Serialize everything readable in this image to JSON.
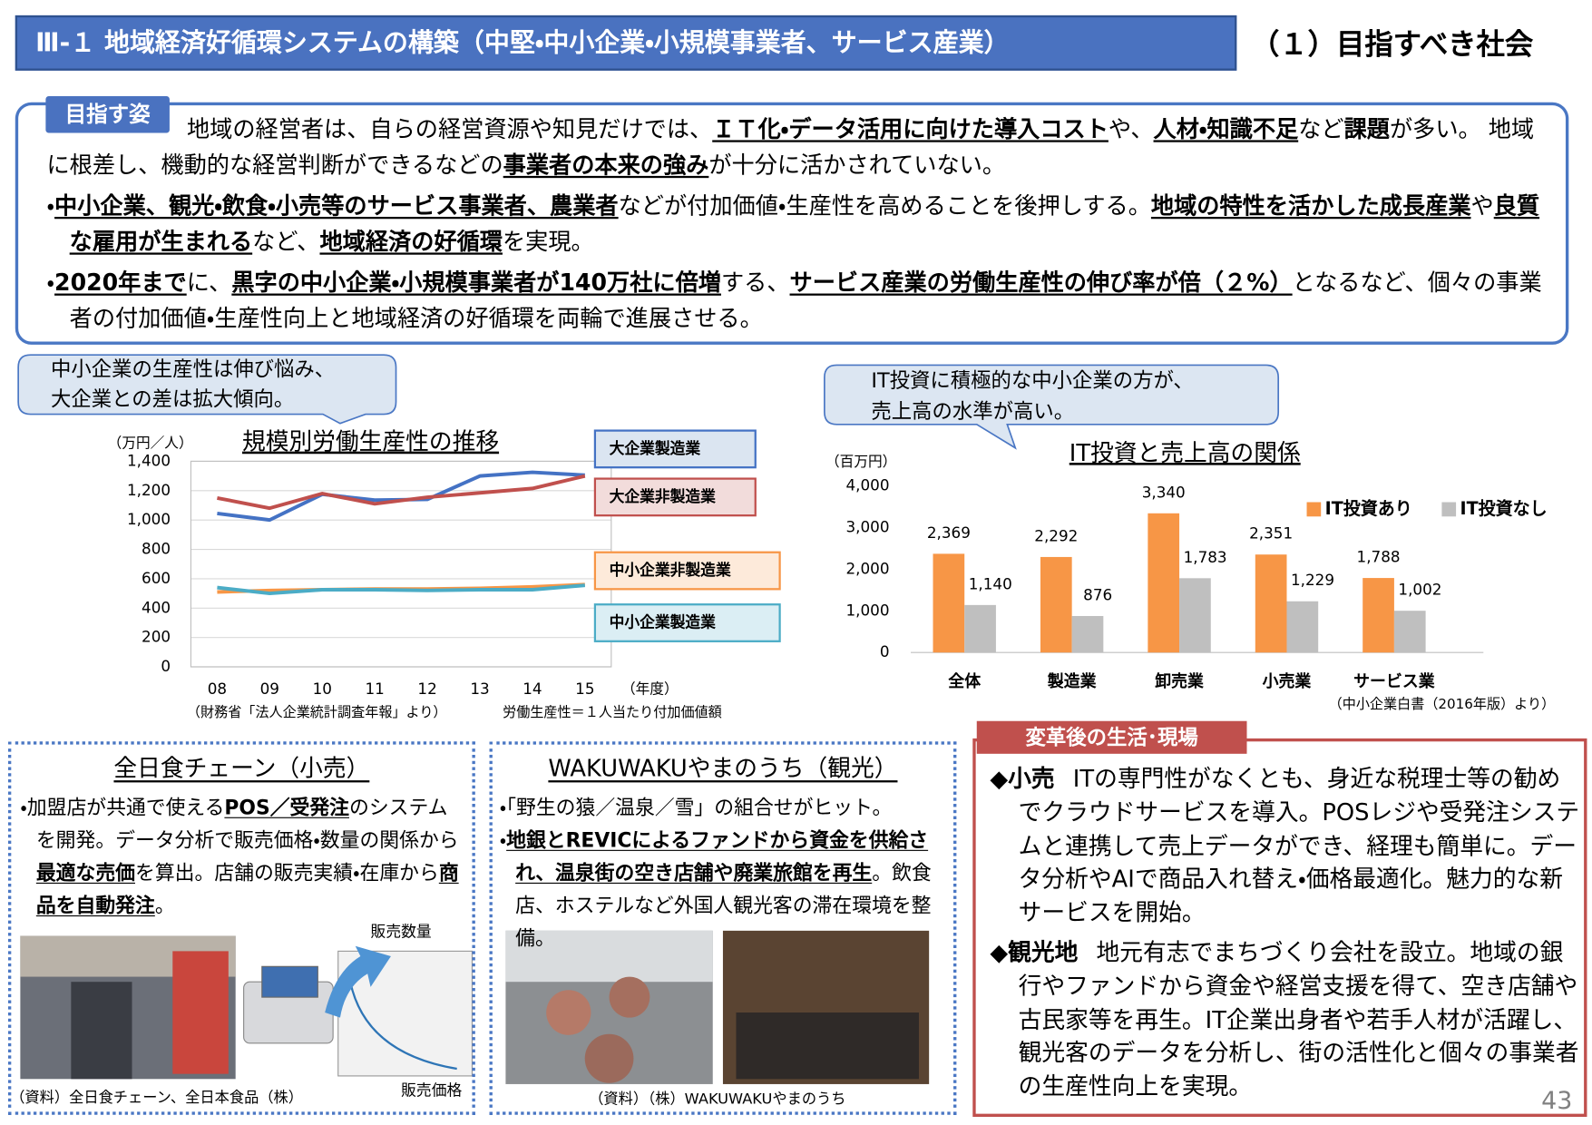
{
  "header": {
    "title": "Ⅲ-１ 地域経済好循環システムの構築（中堅・中小企業・小規模事業者、サービス産業）",
    "subtitle": "（１）目指すべき社会"
  },
  "vision": {
    "label": "目指す姿",
    "paragraphs": [
      {
        "runs": [
          {
            "text": "地域の経営者は、自らの経営資源や知見だけでは、"
          },
          {
            "text": "ＩＴ化・データ活用に向けた導入コスト",
            "style": "bold-underline"
          },
          {
            "text": "や、"
          },
          {
            "text": "人材・知識不足",
            "style": "bold-underline"
          },
          {
            "text": "など"
          },
          {
            "text": "課題",
            "style": "bold"
          },
          {
            "text": "が多い。 地域に根差し、機動的な経営判断ができるなどの"
          },
          {
            "text": "事業者の本来の強み",
            "style": "bold-underline"
          },
          {
            "text": "が十分に活かされていない。"
          }
        ]
      },
      {
        "runs": [
          {
            "text": "・"
          },
          {
            "text": "中小企業、観光・飲食・小売等のサービス事業者、農業者",
            "style": "bold-underline"
          },
          {
            "text": "などが付加価値・生産性を高めることを後押しする。"
          },
          {
            "text": "地域の特性を活かした成長産業",
            "style": "bold-underline"
          },
          {
            "text": "や"
          },
          {
            "text": "良質な雇用が生まれる",
            "style": "bold-underline"
          },
          {
            "text": "など、"
          },
          {
            "text": "地域経済の好循環",
            "style": "bold-underline"
          },
          {
            "text": "を実現。"
          }
        ]
      },
      {
        "runs": [
          {
            "text": "・"
          },
          {
            "text": "2020年まで",
            "style": "bold-underline"
          },
          {
            "text": "に、"
          },
          {
            "text": "黒字の中小企業・小規模事業者が140万社に倍増",
            "style": "bold-underline"
          },
          {
            "text": "する、"
          },
          {
            "text": "サービス産業の労働生産性の伸び率が倍（２%）",
            "style": "bold-underline"
          },
          {
            "text": "となるなど、個々の事業者の付加価値・生産性向上と地域経済の好循環を両輪で進展させる。"
          }
        ]
      }
    ]
  },
  "chart_data": [
    {
      "type": "line",
      "title": "規模別労働生産性の推移",
      "annotation": [
        "中小企業の生産性は伸び悩み、",
        "大企業との差は拡大傾向。"
      ],
      "y_label": "（万円／人）",
      "x_label": "（年度）",
      "source": "（財務省「法人企業統計調査年報」より）",
      "note": "労働生産性＝１人当たり付加価値額",
      "categories": [
        "08",
        "09",
        "10",
        "11",
        "12",
        "13",
        "14",
        "15"
      ],
      "series": [
        {
          "name": "大企業製造業",
          "color": "#4472c4",
          "values": [
            1045,
            1000,
            1175,
            1135,
            1140,
            1300,
            1325,
            1305
          ]
        },
        {
          "name": "大企業非製造業",
          "color": "#c0504d",
          "values": [
            1150,
            1080,
            1180,
            1110,
            1155,
            1185,
            1215,
            1300
          ]
        },
        {
          "name": "中小企業非製造業",
          "color": "#f79646",
          "values": [
            510,
            520,
            525,
            530,
            530,
            535,
            545,
            560
          ]
        },
        {
          "name": "中小企業製造業",
          "color": "#4bacc6",
          "values": [
            540,
            500,
            525,
            525,
            520,
            525,
            525,
            555
          ]
        }
      ],
      "ylim": [
        0,
        1400
      ],
      "yticks": [
        0,
        200,
        400,
        600,
        800,
        {
          "value": 1000,
          "label": "1,000"
        },
        {
          "value": 1200,
          "label": "1,200"
        },
        {
          "value": 1400,
          "label": "1,400"
        }
      ],
      "grid": true
    },
    {
      "type": "bar",
      "title": "IT投資と売上高の関係",
      "annotation": [
        "IT投資に積極的な中小企業の方が、",
        "売上高の水準が高い。"
      ],
      "y_label": "（百万円）",
      "source": "（中小企業白書（2016年版）より）",
      "categories": [
        "全体",
        "製造業",
        "卸売業",
        "小売業",
        "サービス業"
      ],
      "series": [
        {
          "name": "IT投資あり",
          "color": "#f79646",
          "values": [
            2369,
            2292,
            3340,
            2351,
            1788
          ],
          "value_labels": [
            "2,369",
            "2,292",
            "3,340",
            "2,351",
            "1,788"
          ]
        },
        {
          "name": "IT投資なし",
          "color": "#bfbfbf",
          "values": [
            1140,
            876,
            1783,
            1229,
            1002
          ],
          "value_labels": [
            "1,140",
            "876",
            "1,783",
            "1,229",
            "1,002"
          ]
        }
      ],
      "ylim": [
        0,
        4000
      ],
      "yticks": [
        0,
        {
          "value": 1000,
          "label": "1,000"
        },
        {
          "value": 2000,
          "label": "2,000"
        },
        {
          "value": 3000,
          "label": "3,000"
        },
        {
          "value": 4000,
          "label": "4,000"
        }
      ],
      "legend": "top-right"
    }
  ],
  "panels": [
    {
      "title": "全日食チェーン（小売）",
      "paragraphs": [
        {
          "runs": [
            {
              "text": "・加盟店が共通で使える"
            },
            {
              "text": "POS／受発注",
              "style": "bold-underline"
            },
            {
              "text": "のシステムを開発。データ分析で販売価格・数量の関係から"
            },
            {
              "text": "最適な売価",
              "style": "bold-underline"
            },
            {
              "text": "を算出。店舗の販売実績・在庫から"
            },
            {
              "text": "商品を自動発注",
              "style": "bold-underline"
            },
            {
              "text": "。"
            }
          ]
        }
      ],
      "figure_labels": [
        "販売数量",
        "販売価格"
      ],
      "source": "（資料）全日食チェーン、全日本食品（株）"
    },
    {
      "title": "WAKUWAKUやまのうち（観光）",
      "paragraphs": [
        {
          "runs": [
            {
              "text": "・「野生の猿／温泉／雪」の組合せがヒット。"
            }
          ]
        },
        {
          "runs": [
            {
              "text": "・"
            },
            {
              "text": "地銀とREVICによるファンドから資金を供給され、温泉街の空き店舗や廃業旅館を再生",
              "style": "bold-underline"
            },
            {
              "text": "。飲食店、ホステルなど外国人観光客の滞在環境を整備。"
            }
          ]
        }
      ],
      "source": "（資料）（株）WAKUWAKUやまのうち"
    }
  ],
  "transformation": {
    "label": "変革後の生活･現場",
    "items": [
      {
        "head": "◆小売",
        "text": "ITの専門性がなくとも、身近な税理士等の勧めでクラウドサービスを導入。POSレジや受発注システムと連携して売上データができ、経理も簡単に。データ分析やAIで商品入れ替え・価格最適化。魅力的な新サービスを開始。"
      },
      {
        "head": "◆観光地",
        "text": "地元有志でまちづくり会社を設立。地域の銀行やファンドから資金や経営支援を得て、空き店舗や古民家等を再生。IT企業出身者や若手人材が活躍し、観光客のデータを分析し、街の活性化と個々の事業者の生産性向上を実現。"
      }
    ]
  },
  "page_number": "43"
}
